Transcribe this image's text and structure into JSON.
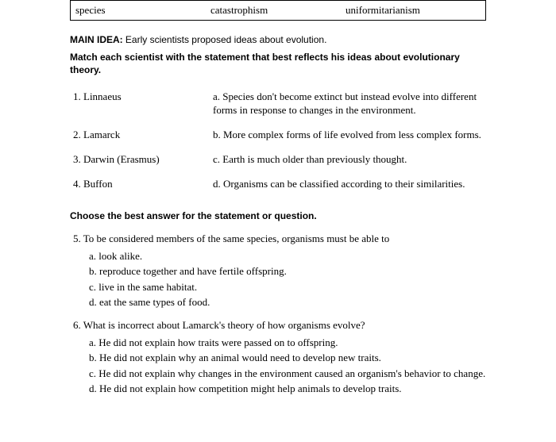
{
  "vocab": {
    "col1": "species",
    "col2": "catastrophism",
    "col3": "uniformitarianism"
  },
  "main_idea": {
    "label": "MAIN IDEA:",
    "text": "Early scientists proposed ideas about evolution."
  },
  "match_instruction": "Match each scientist with the statement that best reflects his ideas about evolutionary theory.",
  "matches": [
    {
      "left": "1. Linnaeus",
      "right": "a. Species don't become extinct but instead evolve into different forms in response to changes in the environment."
    },
    {
      "left": "2. Lamarck",
      "right": "b. More complex forms of life evolved from less complex forms."
    },
    {
      "left": "3. Darwin (Erasmus)",
      "right": "c. Earth is much older than previously thought."
    },
    {
      "left": "4. Buffon",
      "right": "d. Organisms can be classified according to their similarities."
    }
  ],
  "mc_instruction": "Choose the best answer for the statement or question.",
  "questions": [
    {
      "stem": "5. To be considered members of the same species, organisms must be able to",
      "choices": [
        "a. look alike.",
        "b. reproduce together and have fertile offspring.",
        "c. live in the same habitat.",
        "d. eat the same types of food."
      ]
    },
    {
      "stem": "6. What is incorrect about Lamarck's theory of how organisms evolve?",
      "choices": [
        "a. He did not explain how traits were passed on to offspring.",
        "b. He did not explain why an animal would need to develop new traits.",
        "c. He did not explain why changes in the environment caused an organism's behavior to change.",
        "d. He did not explain how competition might help animals to develop traits."
      ]
    }
  ]
}
